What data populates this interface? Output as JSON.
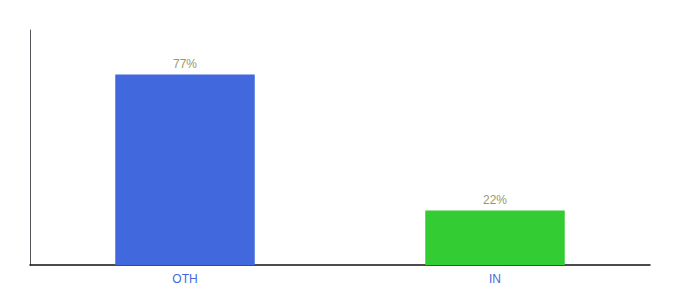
{
  "chart_data": {
    "type": "bar",
    "categories": [
      "OTH",
      "IN"
    ],
    "values": [
      77,
      22
    ],
    "value_labels": [
      "77%",
      "22%"
    ],
    "colors": [
      "#4169dd",
      "#33cc33"
    ],
    "ylim": [
      0,
      95
    ],
    "data_labels": true,
    "tick_labels": "x",
    "grid": false
  }
}
